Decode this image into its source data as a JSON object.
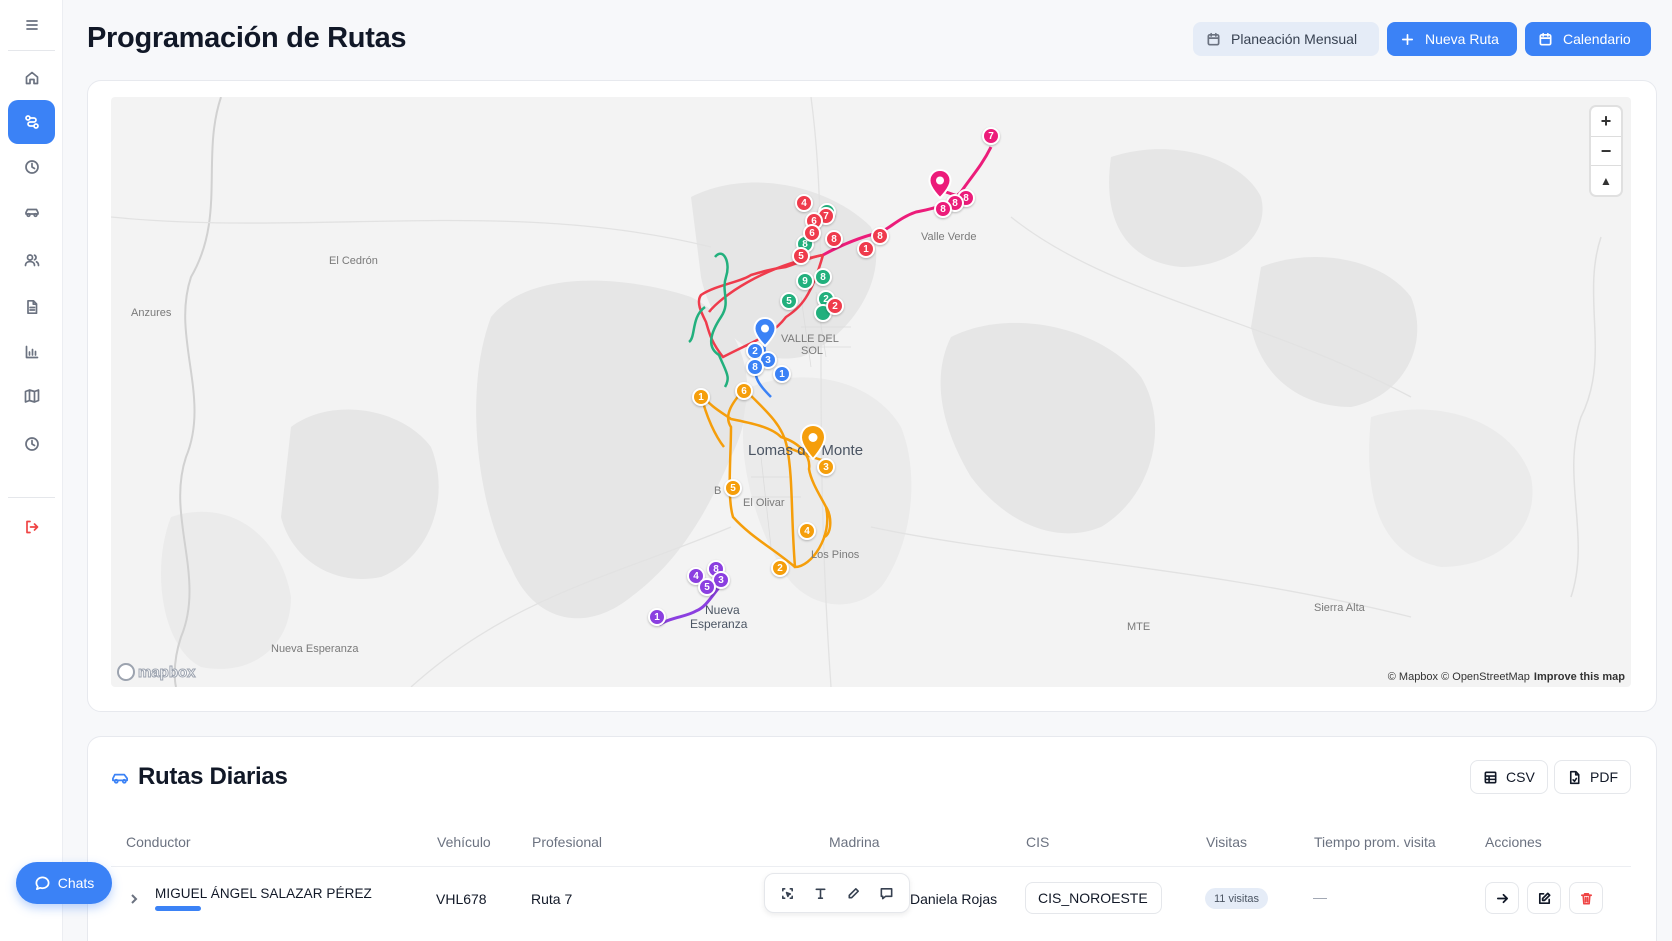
{
  "header": {
    "title": "Programación de Rutas",
    "buttons": {
      "monthly": "Planeación Mensual",
      "new_route": "Nueva Ruta",
      "calendar": "Calendario"
    }
  },
  "sidebar": {
    "items": [
      {
        "icon": "menu-icon"
      },
      {
        "icon": "home-icon"
      },
      {
        "icon": "route-icon",
        "active": true
      },
      {
        "icon": "clock-icon"
      },
      {
        "icon": "car-icon"
      },
      {
        "icon": "users-icon"
      },
      {
        "icon": "document-icon"
      },
      {
        "icon": "chart-icon"
      },
      {
        "icon": "map-icon"
      },
      {
        "icon": "history-icon"
      },
      {
        "icon": "logout-icon"
      }
    ]
  },
  "map": {
    "labels": {
      "el_cedron": "El Cedrón",
      "anzures": "Anzures",
      "valle_verde": "Valle Verde",
      "valle_del_sol_1": "VALLE DEL",
      "valle_del_sol_2": "SOL",
      "lomas": "Lomas del Monte",
      "b_n": "B",
      "el_olivar": "El Olivar",
      "los_pinos": "Los Pinos",
      "nueva_esperanza_1": "Nueva",
      "nueva_esperanza_2": "Esperanza",
      "nueva_esperanza_small": "Nueva Esperanza",
      "mte": "MTE",
      "sierra_alta": "Sierra Alta"
    },
    "zoom": {
      "in": "+",
      "out": "−",
      "north": "▲"
    },
    "attribution": "© Mapbox © OpenStreetMap",
    "improve": "Improve this map",
    "logo": "mapbox",
    "colors": {
      "pink": "#ec1c7a",
      "red": "#ef3b4c",
      "green": "#22b07d",
      "blue": "#3b82f6",
      "orange": "#f59e0b",
      "purple": "#8b3fe0"
    },
    "pins": {
      "pink": [
        "7",
        "8",
        "8",
        "8"
      ],
      "red": [
        "4",
        "7",
        "6",
        "6",
        "8",
        "5",
        "1",
        "8",
        "2"
      ],
      "green": [
        "8",
        "2",
        "5",
        "9",
        "8"
      ],
      "blue": [
        "2",
        "3",
        "8",
        "1"
      ],
      "orange": [
        "1",
        "6",
        "3",
        "5",
        "4",
        "2"
      ],
      "purple": [
        "4",
        "8",
        "5",
        "3",
        "1"
      ]
    }
  },
  "routes": {
    "title": "Rutas Diarias",
    "export_csv": "CSV",
    "export_pdf": "PDF",
    "columns": {
      "driver": "Conductor",
      "vehicle": "Vehículo",
      "professional": "Profesional",
      "madrina": "Madrina",
      "cis": "CIS",
      "visits": "Visitas",
      "avg_time": "Tiempo prom. visita",
      "actions": "Acciones"
    },
    "rows": [
      {
        "driver": "MIGUEL ÁNGEL SALAZAR PÉREZ",
        "vehicle": "VHL678",
        "professional": "Ruta 7",
        "madrina": "Daniela Rojas",
        "cis": "CIS_NOROESTE",
        "visits": "11 visitas",
        "avg_time": "—"
      }
    ]
  },
  "chats": {
    "label": "Chats"
  }
}
